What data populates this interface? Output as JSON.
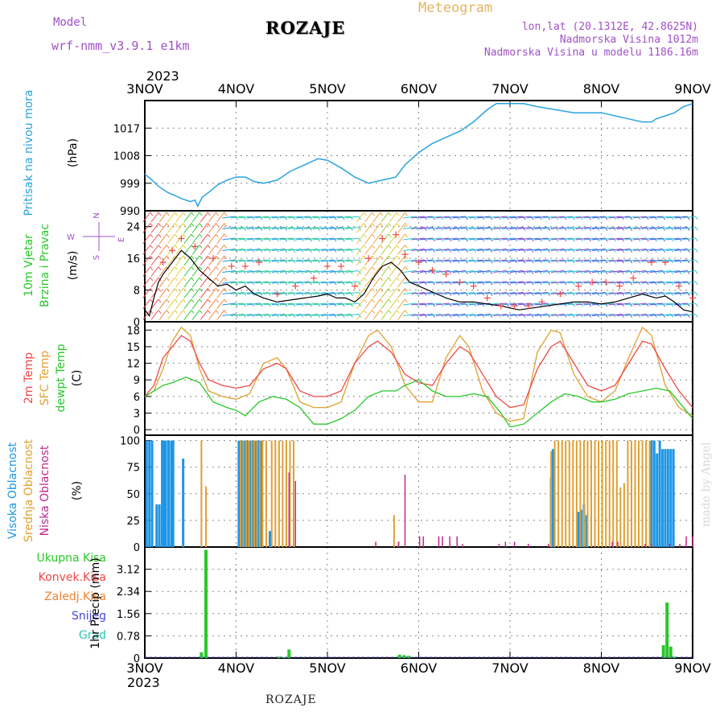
{
  "header": {
    "model_label": "Model",
    "model_name": "wrf-nmm_v3.9.1  e1km",
    "station": "ROZAJE",
    "product": "Meteogram",
    "coords": "lon,lat (20.1312E, 42.8625N)",
    "elevation": "Nadmorska Visina 1012m",
    "model_elevation": "Nadmorska Visina u modelu 1186.16m",
    "footer_station": "ROZAJE",
    "credit": "made by Angel"
  },
  "colors": {
    "pressure": "#29a3e0",
    "wind_speed": "#000000",
    "wind_gust": "#f04848",
    "temp_2m": "#f04848",
    "temp_sfc": "#e0a030",
    "temp_dew": "#28c828",
    "cloud_high": "#1e96e6",
    "cloud_mid": "#e0a030",
    "cloud_low": "#c0288c",
    "precip_total": "#28c828",
    "precip_conv": "#f04848",
    "precip_snow": "#4646dc"
  },
  "chart_data": {
    "type": "line",
    "time_axis": {
      "year": "2023",
      "days": [
        "3NOV",
        "4NOV",
        "5NOV",
        "6NOV",
        "7NOV",
        "8NOV",
        "9NOV"
      ],
      "range_days": [
        0,
        6
      ]
    },
    "panels": [
      {
        "id": "pressure",
        "ylabel": [
          "Pritisak na nivou mora",
          "(hPa)"
        ],
        "ylim": [
          990,
          1026
        ],
        "yticks": [
          990,
          999,
          1008,
          1017
        ],
        "series": [
          {
            "type": "line",
            "x": [
              0,
              0.08,
              0.15,
              0.25,
              0.33,
              0.4,
              0.5,
              0.55,
              0.58,
              0.63,
              0.7,
              0.8,
              0.9,
              1.0,
              1.1,
              1.2,
              1.3,
              1.45,
              1.6,
              1.75,
              1.9,
              2.0,
              2.15,
              2.3,
              2.45,
              2.6,
              2.75,
              2.85,
              3.0,
              3.15,
              3.3,
              3.45,
              3.6,
              3.75,
              3.85,
              4.0,
              4.15,
              4.3,
              4.5,
              4.7,
              4.85,
              5.0,
              5.15,
              5.3,
              5.45,
              5.55,
              5.6,
              5.7,
              5.8,
              5.9,
              6.0
            ],
            "values": [
              1002,
              1000,
              998,
              996,
              995,
              994,
              993,
              993.5,
              991.5,
              994.5,
              996,
              998.5,
              1000,
              1001,
              1001,
              999.5,
              999,
              1000,
              1003,
              1005,
              1007,
              1006.5,
              1004,
              1001,
              999,
              1000,
              1001,
              1005,
              1009,
              1012,
              1014,
              1016,
              1019,
              1023,
              1025,
              1025,
              1025,
              1024,
              1023,
              1022,
              1022,
              1022,
              1021,
              1020,
              1019,
              1019,
              1020,
              1021,
              1022,
              1024,
              1025
            ]
          }
        ]
      },
      {
        "id": "wind",
        "ylabel": [
          "10m Vjetar",
          "Brzina i Pravac",
          "(m/s)"
        ],
        "compass": [
          "N",
          "E",
          "S",
          "W"
        ],
        "ylim": [
          0,
          28
        ],
        "yticks": [
          0,
          8,
          16,
          24
        ],
        "series": [
          {
            "name": "speed",
            "type": "line",
            "x": [
              0,
              0.05,
              0.1,
              0.15,
              0.2,
              0.3,
              0.4,
              0.5,
              0.6,
              0.7,
              0.8,
              0.9,
              1.0,
              1.1,
              1.2,
              1.3,
              1.45,
              1.6,
              1.75,
              1.9,
              2.0,
              2.1,
              2.2,
              2.3,
              2.4,
              2.5,
              2.6,
              2.7,
              2.8,
              2.9,
              3.0,
              3.1,
              3.2,
              3.3,
              3.45,
              3.6,
              3.75,
              3.9,
              4.0,
              4.1,
              4.25,
              4.4,
              4.55,
              4.7,
              4.85,
              5.0,
              5.15,
              5.3,
              5.45,
              5.6,
              5.7,
              5.8,
              5.9,
              6.0
            ],
            "values": [
              3,
              1.5,
              6,
              10,
              12,
              15,
              18,
              16,
              13,
              11,
              9,
              9.5,
              8,
              9,
              7,
              6,
              5,
              5.5,
              6,
              6.5,
              7,
              6,
              6,
              5,
              7,
              11,
              14,
              15,
              13,
              10,
              9,
              8,
              7,
              6,
              5,
              5,
              4.5,
              4,
              3.5,
              3,
              3.5,
              4,
              4.5,
              5,
              5,
              4.5,
              5,
              6,
              7,
              6,
              6.5,
              5,
              3,
              2.5
            ]
          },
          {
            "name": "gust",
            "type": "scatter",
            "x": [
              0.2,
              0.3,
              0.4,
              0.55,
              0.75,
              0.95,
              1.1,
              1.25,
              1.45,
              1.65,
              1.85,
              2.0,
              2.15,
              2.3,
              2.45,
              2.6,
              2.75,
              2.85,
              3.0,
              3.15,
              3.3,
              3.45,
              3.6,
              3.75,
              3.9,
              4.05,
              4.2,
              4.35,
              4.55,
              4.75,
              4.9,
              5.05,
              5.2,
              5.35,
              5.55,
              5.7,
              5.85,
              6.0
            ],
            "values": [
              15,
              18,
              21,
              19,
              16,
              14,
              14,
              15,
              7,
              9,
              11,
              14,
              14,
              9,
              16,
              21,
              22,
              17,
              15,
              13,
              12,
              10,
              9,
              6,
              4,
              4,
              4,
              5,
              7,
              9,
              10,
              10,
              9,
              11,
              15,
              15,
              9,
              6
            ]
          }
        ]
      },
      {
        "id": "temperature",
        "ylabel": [
          "2m Temp",
          "SFC Temp",
          "dewpt Temp",
          "(C)"
        ],
        "ylim": [
          -1,
          19.5
        ],
        "yticks": [
          0,
          3,
          6,
          9,
          12,
          15,
          18
        ],
        "series": [
          {
            "name": "2m Temp",
            "type": "line",
            "x": [
              0,
              0.1,
              0.2,
              0.3,
              0.4,
              0.5,
              0.6,
              0.7,
              0.85,
              1.0,
              1.15,
              1.3,
              1.45,
              1.55,
              1.7,
              1.85,
              2.0,
              2.15,
              2.3,
              2.45,
              2.55,
              2.7,
              2.85,
              3.0,
              3.15,
              3.3,
              3.45,
              3.55,
              3.7,
              3.85,
              4.0,
              4.15,
              4.3,
              4.45,
              4.55,
              4.7,
              4.85,
              5.0,
              5.15,
              5.3,
              5.45,
              5.55,
              5.7,
              5.85,
              6.0
            ],
            "values": [
              6,
              8,
              13,
              15,
              17,
              16,
              12,
              9,
              8,
              7.5,
              8,
              11,
              12,
              11,
              7,
              6,
              6,
              7,
              12,
              15,
              16,
              14,
              10,
              8.5,
              8,
              12,
              15,
              14,
              10,
              6,
              4,
              4.5,
              11,
              15,
              16,
              12,
              8,
              7,
              8,
              12,
              16,
              15.5,
              11,
              7,
              4
            ]
          },
          {
            "name": "SFC Temp",
            "type": "line",
            "x": [
              0,
              0.1,
              0.2,
              0.3,
              0.4,
              0.5,
              0.6,
              0.7,
              0.85,
              1.0,
              1.15,
              1.3,
              1.45,
              1.55,
              1.7,
              1.85,
              2.0,
              2.15,
              2.3,
              2.45,
              2.55,
              2.7,
              2.85,
              3.0,
              3.15,
              3.3,
              3.45,
              3.55,
              3.7,
              3.85,
              4.0,
              4.15,
              4.3,
              4.45,
              4.55,
              4.7,
              4.85,
              5.0,
              5.15,
              5.3,
              5.45,
              5.55,
              5.7,
              5.85,
              6.0
            ],
            "values": [
              6,
              7,
              11,
              16,
              18.5,
              17,
              11,
              7,
              6,
              5.5,
              6.5,
              12,
              13,
              11,
              5,
              4,
              4,
              5,
              12,
              17,
              18,
              15,
              8,
              5,
              5,
              13,
              17,
              15,
              7,
              3,
              1.5,
              2,
              14,
              18,
              17.5,
              10,
              6,
              5,
              7,
              13,
              18.5,
              17,
              8,
              4,
              2.5
            ]
          },
          {
            "name": "dewpt Temp",
            "type": "line",
            "x": [
              0,
              0.1,
              0.2,
              0.3,
              0.45,
              0.6,
              0.75,
              0.9,
              1.0,
              1.1,
              1.25,
              1.4,
              1.55,
              1.7,
              1.85,
              2.0,
              2.15,
              2.3,
              2.45,
              2.6,
              2.75,
              2.85,
              3.0,
              3.15,
              3.3,
              3.45,
              3.6,
              3.75,
              3.9,
              4.0,
              4.15,
              4.3,
              4.45,
              4.6,
              4.75,
              4.9,
              5.0,
              5.15,
              5.3,
              5.45,
              5.6,
              5.75,
              5.9,
              6.0
            ],
            "values": [
              6,
              7,
              8,
              8.5,
              9.5,
              8.5,
              5,
              4,
              3.5,
              2.5,
              5,
              6,
              5.5,
              4,
              1,
              1,
              2,
              3.5,
              6,
              7,
              7,
              8,
              9,
              7,
              6,
              6,
              6.5,
              6,
              3,
              0.5,
              1,
              3,
              5,
              6.5,
              6,
              5,
              5,
              5.5,
              6.5,
              7,
              7.5,
              7,
              4,
              2
            ]
          }
        ]
      },
      {
        "id": "clouds",
        "ylabel": [
          "Visoka Oblacnost",
          "Srednja Oblacnost",
          "Niska Oblacnost",
          "(%)"
        ],
        "ylim": [
          0,
          105
        ],
        "yticks": [
          0,
          25,
          50,
          75,
          100
        ],
        "series": [
          {
            "name": "Visoka Oblacnost",
            "type": "bar",
            "x": [
              0.02,
              0.05,
              0.08,
              0.13,
              0.16,
              0.19,
              0.21,
              0.23,
              0.26,
              0.29,
              0.31,
              0.42,
              1.03,
              1.06,
              1.09,
              1.12,
              1.15,
              1.18,
              1.21,
              1.24,
              1.27,
              1.37,
              4.45,
              4.47,
              4.75,
              4.78,
              4.81,
              4.84,
              5.55,
              5.58,
              5.61,
              5.64,
              5.67,
              5.7,
              5.73,
              5.76,
              5.79
            ],
            "values": [
              100,
              100,
              100,
              40,
              40,
              100,
              100,
              100,
              100,
              100,
              100,
              83,
              100,
              100,
              100,
              100,
              100,
              100,
              100,
              100,
              100,
              15,
              65,
              92,
              33,
              35,
              40,
              30,
              100,
              100,
              88,
              100,
              92,
              92,
              92,
              92,
              92
            ]
          },
          {
            "name": "Srednja Oblacnost",
            "type": "bar",
            "x": [
              0.62,
              0.67,
              1.05,
              1.08,
              1.11,
              1.14,
              1.17,
              1.2,
              1.23,
              1.26,
              1.29,
              1.33,
              1.39,
              1.43,
              1.47,
              1.51,
              1.55,
              1.59,
              1.63,
              2.73,
              2.78,
              4.45,
              4.49,
              4.53,
              4.57,
              4.61,
              4.65,
              4.69,
              4.73,
              4.77,
              4.81,
              4.85,
              4.89,
              4.93,
              4.97,
              5.01,
              5.05,
              5.09,
              5.13,
              5.17,
              5.21,
              5.25,
              5.29,
              5.33,
              5.37,
              5.41,
              5.45,
              5.49,
              5.53
            ],
            "values": [
              100,
              57,
              100,
              100,
              100,
              100,
              100,
              100,
              100,
              100,
              100,
              100,
              100,
              100,
              100,
              100,
              100,
              100,
              100,
              30,
              5,
              90,
              100,
              100,
              100,
              100,
              100,
              100,
              100,
              100,
              100,
              100,
              100,
              100,
              100,
              100,
              100,
              100,
              100,
              100,
              56,
              60,
              100,
              100,
              100,
              100,
              100,
              100,
              100
            ]
          },
          {
            "name": "Niska Oblacnost",
            "type": "bar",
            "x": [
              1.58,
              1.65,
              2.53,
              2.78,
              2.85,
              3.01,
              3.05,
              3.22,
              3.26,
              3.34,
              3.42,
              3.48,
              3.88,
              3.95,
              4.05,
              4.2,
              4.42,
              5.12,
              5.18,
              5.48,
              5.55,
              5.75,
              5.86,
              5.93,
              6.0
            ],
            "values": [
              70,
              62,
              5,
              5,
              68,
              10,
              10,
              10,
              10,
              10,
              10,
              3,
              3,
              5,
              5,
              3,
              3,
              5,
              5,
              3,
              3,
              3,
              3,
              10,
              10
            ]
          }
        ]
      },
      {
        "id": "precip",
        "ylabel": [
          "1hr Precip (mm)"
        ],
        "legend": [
          "Ukupna  Kisa",
          "Konvek.Kisa",
          "Zaledj.Kisa",
          "Snijeg",
          "Grad"
        ],
        "legend_colors": [
          "#28c828",
          "#f04848",
          "#f08030",
          "#4646dc",
          "#28c8b4"
        ],
        "ylim": [
          0,
          3.9
        ],
        "yticks": [
          0,
          0.78,
          1.56,
          2.34,
          3.12
        ],
        "series": [
          {
            "name": "Ukupna  Kisa",
            "type": "bar",
            "x": [
              0.62,
              0.67,
              1.47,
              1.53,
              1.58,
              2.79,
              2.84,
              2.89,
              5.68,
              5.72,
              5.76,
              5.8
            ],
            "values": [
              0.2,
              3.8,
              0.05,
              0.03,
              0.3,
              0.12,
              0.1,
              0.08,
              0.45,
              1.95,
              0.4,
              0.05
            ]
          }
        ]
      }
    ]
  }
}
